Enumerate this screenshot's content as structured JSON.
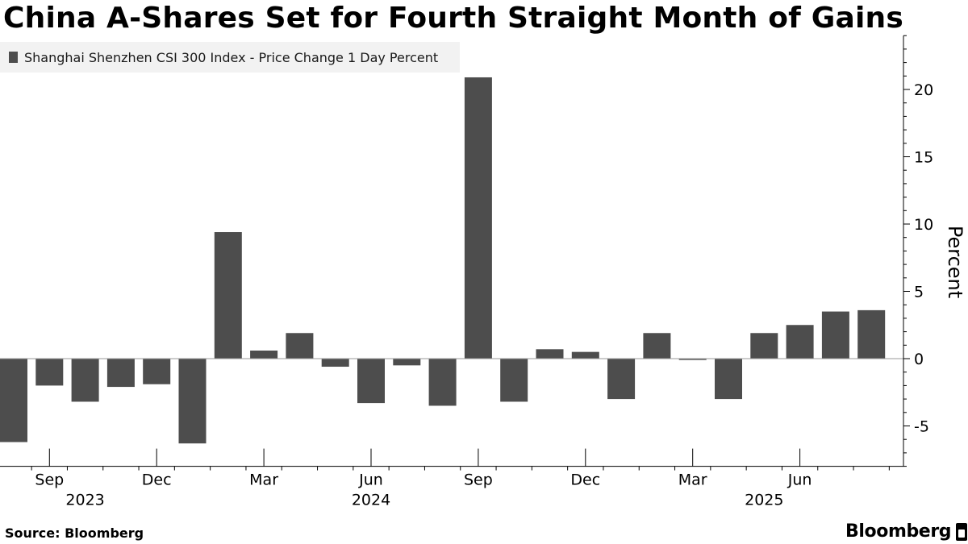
{
  "title": "China A-Shares Set for Fourth Straight Month of Gains",
  "source": "Source: Bloomberg",
  "brand": "Bloomberg",
  "colors": {
    "bar": "#4d4d4d",
    "legend_bg": "#f2f2f2",
    "axis": "#000000",
    "grid": "#bfbfbf"
  },
  "chart_data": {
    "type": "bar",
    "title": "China A-Shares Set for Fourth Straight Month of Gains",
    "ylabel": "Percent",
    "ylim": [
      -8,
      24
    ],
    "y_ticks": [
      -5,
      0,
      5,
      10,
      15,
      20
    ],
    "y_tick_labels": [
      "-5",
      "0",
      "5",
      "10",
      "15",
      "20"
    ],
    "grid": false,
    "legend_position": "top-left",
    "x_tick_labels": [
      {
        "label": "Sep",
        "bar_index": 1
      },
      {
        "label": "Dec",
        "bar_index": 4
      },
      {
        "label": "Mar",
        "bar_index": 7
      },
      {
        "label": "Jun",
        "bar_index": 10
      },
      {
        "label": "Sep",
        "bar_index": 13
      },
      {
        "label": "Dec",
        "bar_index": 16
      },
      {
        "label": "Mar",
        "bar_index": 19
      },
      {
        "label": "Jun",
        "bar_index": 22
      }
    ],
    "year_labels": [
      {
        "label": "2023",
        "bar_index": 2
      },
      {
        "label": "2024",
        "bar_index": 10
      },
      {
        "label": "2025",
        "bar_index": 21
      }
    ],
    "categories": [
      "2023-08",
      "2023-09",
      "2023-10",
      "2023-11",
      "2023-12",
      "2024-01",
      "2024-02",
      "2024-03",
      "2024-04",
      "2024-05",
      "2024-06",
      "2024-07",
      "2024-08",
      "2024-09",
      "2024-10",
      "2024-11",
      "2024-12",
      "2025-01",
      "2025-02",
      "2025-03",
      "2025-04",
      "2025-05",
      "2025-06",
      "2025-07",
      "2025-08"
    ],
    "series": [
      {
        "name": "Shanghai Shenzhen CSI 300 Index - Price Change 1 Day Percent",
        "values": [
          -6.2,
          -2.0,
          -3.2,
          -2.1,
          -1.9,
          -6.3,
          9.4,
          0.6,
          1.9,
          -0.6,
          -3.3,
          -0.5,
          -3.5,
          20.9,
          -3.2,
          0.7,
          0.5,
          -3.0,
          1.9,
          -0.1,
          -3.0,
          1.9,
          2.5,
          3.5,
          3.6
        ]
      }
    ]
  }
}
